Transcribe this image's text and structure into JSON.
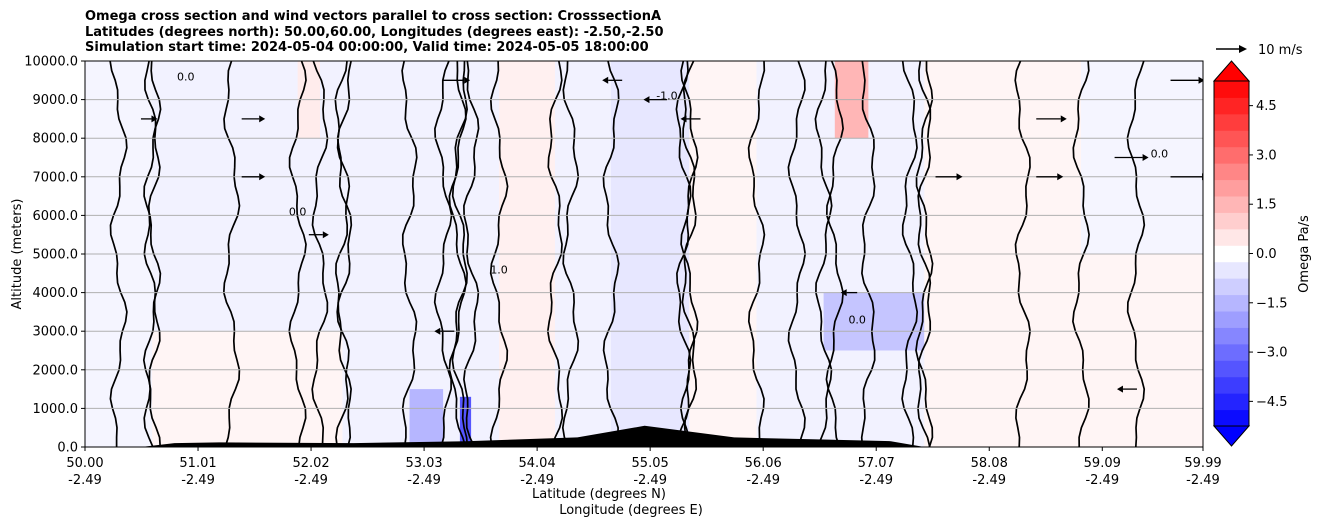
{
  "title_lines": [
    "Omega cross section and wind vectors parallel to cross section: CrosssectionA",
    "Latitudes (degrees north): 50.00,60.00, Longitudes (degrees east): -2.50,-2.50",
    "Simulation start time: 2024-05-04 00:00:00, Valid time: 2024-05-05 18:00:00"
  ],
  "chart_data": {
    "type": "heatmap",
    "ylabel": "Altitude (meters)",
    "xlabel_lines": [
      "Latitude (degrees N)",
      "Longitude (degrees E)"
    ],
    "ylim": [
      0,
      10000
    ],
    "y_ticks": [
      0,
      1000,
      2000,
      3000,
      4000,
      5000,
      6000,
      7000,
      8000,
      9000,
      10000
    ],
    "y_tick_labels": [
      "0.0",
      "1000.0",
      "2000.0",
      "3000.0",
      "4000.0",
      "5000.0",
      "6000.0",
      "7000.0",
      "8000.0",
      "9000.0",
      "10000.0"
    ],
    "grid": "horizontal",
    "xlim": [
      50.0,
      59.99
    ],
    "x_ticks": [
      {
        "lat": "50.00",
        "lon": "-2.49"
      },
      {
        "lat": "51.01",
        "lon": "-2.49"
      },
      {
        "lat": "52.02",
        "lon": "-2.49"
      },
      {
        "lat": "53.03",
        "lon": "-2.49"
      },
      {
        "lat": "54.04",
        "lon": "-2.49"
      },
      {
        "lat": "55.05",
        "lon": "-2.49"
      },
      {
        "lat": "56.06",
        "lon": "-2.49"
      },
      {
        "lat": "57.07",
        "lon": "-2.49"
      },
      {
        "lat": "58.08",
        "lon": "-2.49"
      },
      {
        "lat": "59.09",
        "lon": "-2.49"
      },
      {
        "lat": "59.99",
        "lon": "-2.49"
      }
    ],
    "colorbar": {
      "label": "Omega Pa/s",
      "range": [
        -5.25,
        5.25
      ],
      "extend": "both",
      "ticks": [
        4.5,
        3.0,
        1.5,
        0.0,
        -1.5,
        -3.0,
        -4.5
      ],
      "tick_labels": [
        "4.5",
        "3.0",
        "1.5",
        "0.0",
        "−1.5",
        "−3.0",
        "−4.5"
      ],
      "positive_color": "#ff0000",
      "negative_color": "#0000ff"
    },
    "vector_key": {
      "label": "10 m/s",
      "speed": 10
    },
    "contour_label_values": [
      "0.0",
      "1.0",
      "-1.0"
    ],
    "omega_regions": [
      {
        "lat_min": 50.0,
        "lat_max": 50.6,
        "alt_min": 0,
        "alt_max": 10000,
        "omega": -0.2
      },
      {
        "lat_min": 50.6,
        "lat_max": 52.3,
        "alt_min": 0,
        "alt_max": 3000,
        "omega": 0.2
      },
      {
        "lat_min": 51.9,
        "lat_max": 52.1,
        "alt_min": 8000,
        "alt_max": 10000,
        "omega": 0.4
      },
      {
        "lat_min": 52.9,
        "lat_max": 53.2,
        "alt_min": 0,
        "alt_max": 1500,
        "omega": -1.5
      },
      {
        "lat_min": 53.35,
        "lat_max": 53.45,
        "alt_min": 0,
        "alt_max": 1300,
        "omega": -3.5
      },
      {
        "lat_min": 53.7,
        "lat_max": 54.2,
        "alt_min": 0,
        "alt_max": 10000,
        "omega": 0.3
      },
      {
        "lat_min": 54.7,
        "lat_max": 55.4,
        "alt_min": 0,
        "alt_max": 10000,
        "omega": -0.5
      },
      {
        "lat_min": 55.4,
        "lat_max": 56.0,
        "alt_min": 0,
        "alt_max": 10000,
        "omega": 0.2
      },
      {
        "lat_min": 56.7,
        "lat_max": 57.0,
        "alt_min": 8000,
        "alt_max": 10000,
        "omega": 1.5
      },
      {
        "lat_min": 56.6,
        "lat_max": 57.5,
        "alt_min": 2500,
        "alt_max": 4000,
        "omega": -1.2
      },
      {
        "lat_min": 57.5,
        "lat_max": 59.99,
        "alt_min": 0,
        "alt_max": 10000,
        "omega": 0.2
      },
      {
        "lat_min": 58.9,
        "lat_max": 59.99,
        "alt_min": 5000,
        "alt_max": 10000,
        "omega": -0.2
      }
    ],
    "wind_vectors": [
      {
        "lat": 50.5,
        "alt": 8500,
        "u": 3
      },
      {
        "lat": 51.4,
        "alt": 7000,
        "u": 5
      },
      {
        "lat": 51.4,
        "alt": 8500,
        "u": 5
      },
      {
        "lat": 52.0,
        "alt": 5500,
        "u": 4
      },
      {
        "lat": 53.2,
        "alt": 9500,
        "u": 6
      },
      {
        "lat": 54.8,
        "alt": 9500,
        "u": -4
      },
      {
        "lat": 55.2,
        "alt": 9000,
        "u": -5
      },
      {
        "lat": 55.5,
        "alt": 8500,
        "u": -4
      },
      {
        "lat": 57.6,
        "alt": 7000,
        "u": 6
      },
      {
        "lat": 58.5,
        "alt": 7000,
        "u": 6
      },
      {
        "lat": 58.5,
        "alt": 8500,
        "u": 7
      },
      {
        "lat": 59.2,
        "alt": 7500,
        "u": 8
      },
      {
        "lat": 59.7,
        "alt": 7000,
        "u": 9
      },
      {
        "lat": 59.7,
        "alt": 9500,
        "u": 8
      },
      {
        "lat": 53.3,
        "alt": 3000,
        "u": -4
      },
      {
        "lat": 56.9,
        "alt": 4000,
        "u": -3
      },
      {
        "lat": 59.4,
        "alt": 1500,
        "u": -4
      }
    ],
    "terrain_peaks": [
      {
        "lat": 50.8,
        "alt": 100
      },
      {
        "lat": 51.2,
        "alt": 120
      },
      {
        "lat": 52.4,
        "alt": 100
      },
      {
        "lat": 53.4,
        "alt": 150
      },
      {
        "lat": 54.4,
        "alt": 250
      },
      {
        "lat": 55.0,
        "alt": 550
      },
      {
        "lat": 55.8,
        "alt": 250
      },
      {
        "lat": 56.5,
        "alt": 200
      },
      {
        "lat": 57.2,
        "alt": 150
      }
    ]
  }
}
